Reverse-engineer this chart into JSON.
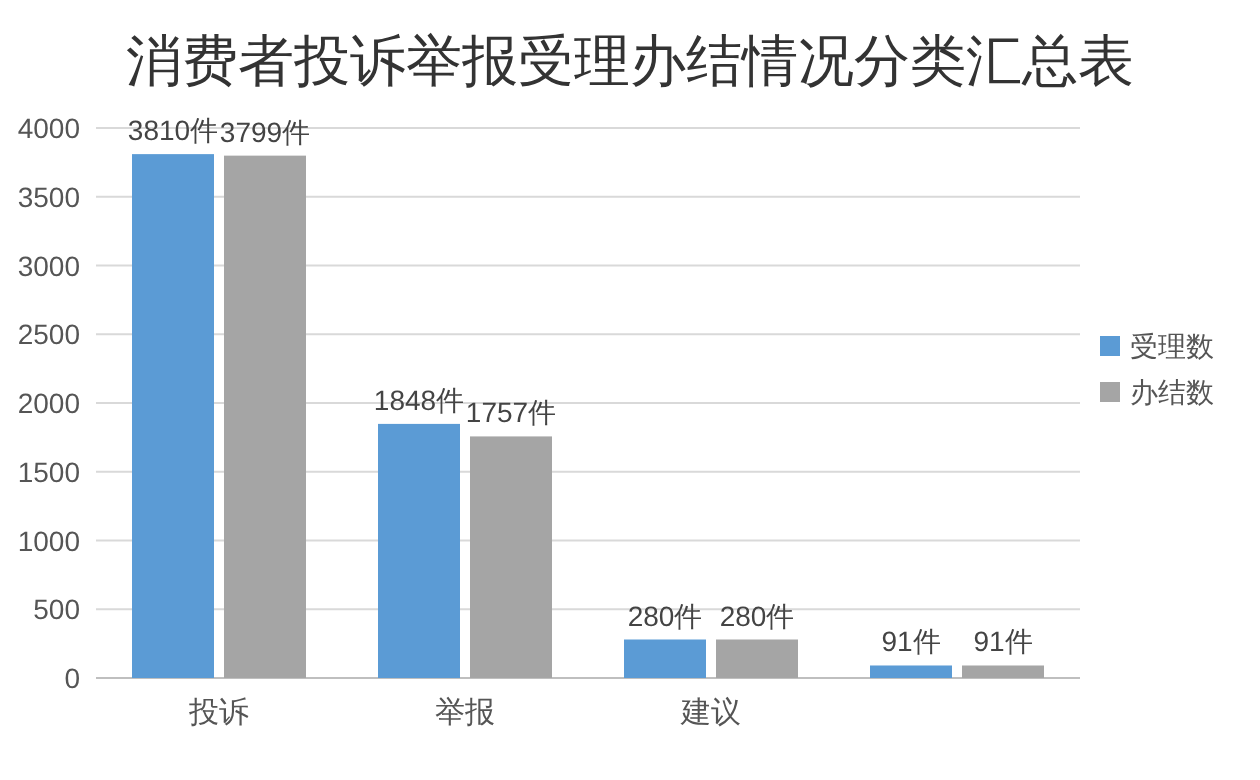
{
  "chart_data": {
    "type": "bar",
    "title": "消费者投诉举报受理办结情况分类汇总表",
    "categories": [
      "投诉",
      "举报",
      "建议",
      null
    ],
    "series": [
      {
        "name": "受理数",
        "color": "#5b9bd5",
        "values": [
          3810,
          1848,
          280,
          91
        ],
        "value_labels": [
          "3810件",
          "1848件",
          "280件",
          "91件"
        ]
      },
      {
        "name": "办结数",
        "color": "#a5a5a5",
        "values": [
          3799,
          1757,
          280,
          91
        ],
        "value_labels": [
          "3799件",
          "1757件",
          "280件",
          "91件"
        ]
      }
    ],
    "ylim": [
      0,
      4000
    ],
    "yticks": [
      0,
      500,
      1000,
      1500,
      2000,
      2500,
      3000,
      3500,
      4000
    ],
    "grid": "y",
    "legend": "right"
  }
}
